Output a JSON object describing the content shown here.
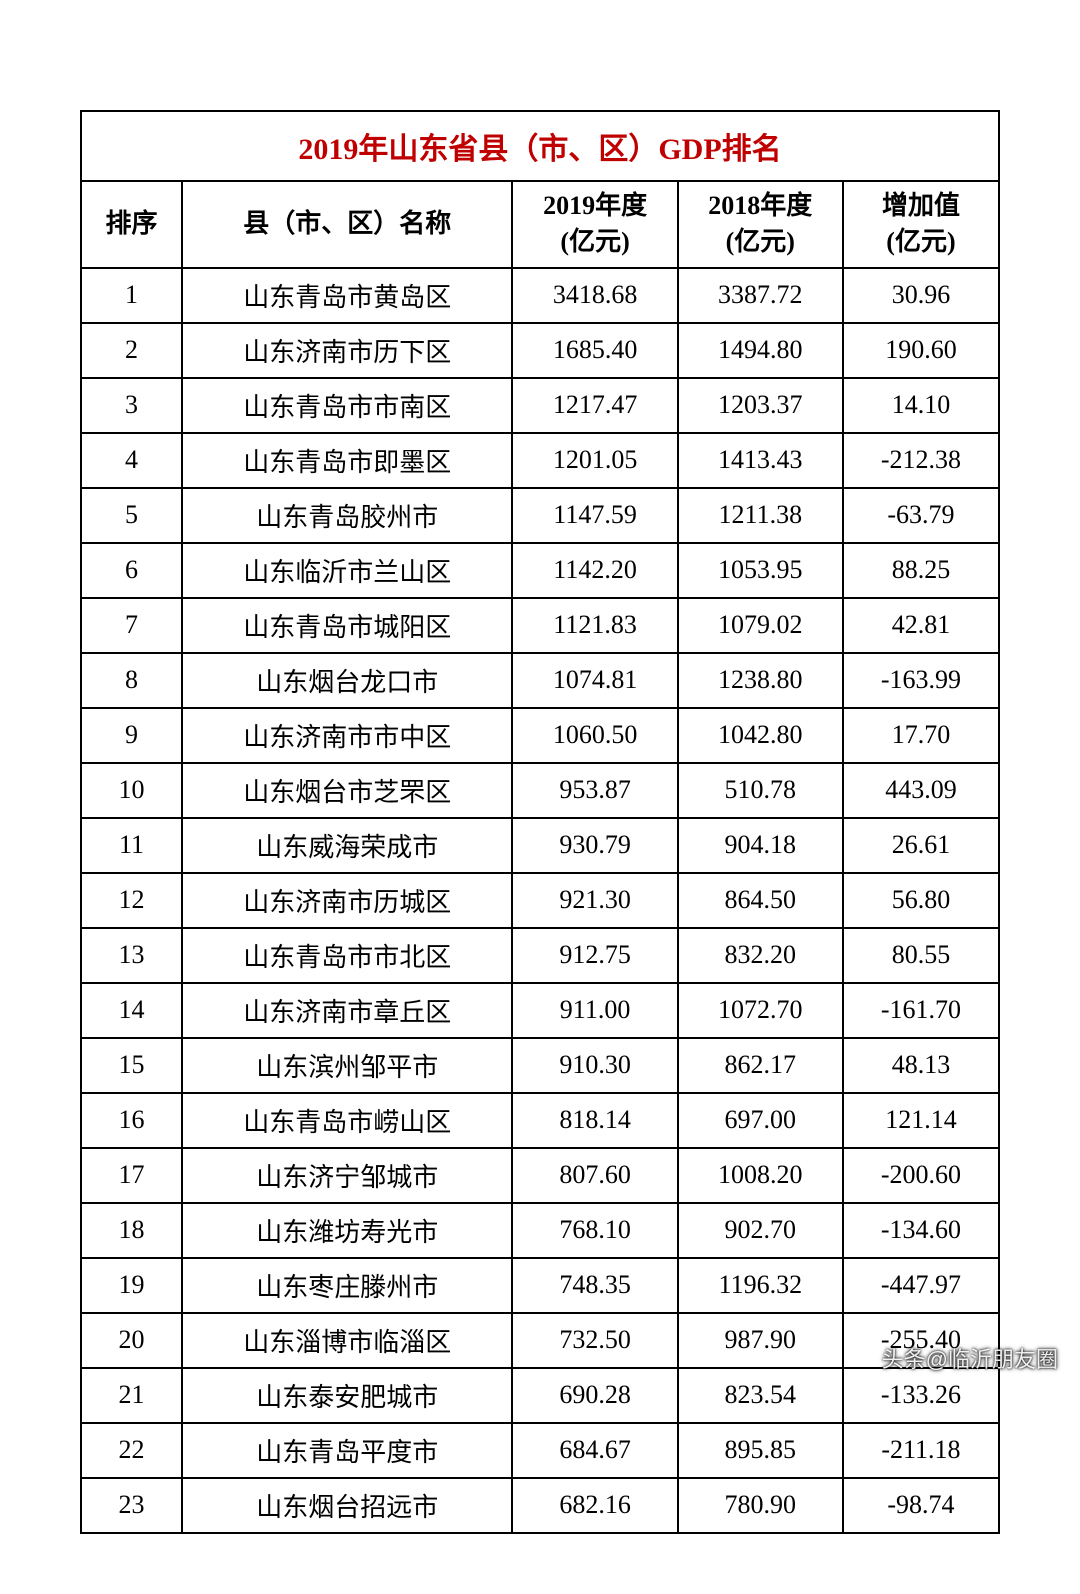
{
  "table": {
    "title": "2019年山东省县（市、区）GDP排名",
    "title_color": "#c00000",
    "border_color": "#000000",
    "background": "#ffffff",
    "font_size_title": 30,
    "font_size_header": 26,
    "font_size_cell": 26,
    "columns": [
      {
        "key": "rank",
        "label_line1": "排序",
        "label_line2": "",
        "width_pct": 11,
        "align": "center"
      },
      {
        "key": "name",
        "label_line1": "县（市、区）名称",
        "label_line2": "",
        "width_pct": 36,
        "align": "center"
      },
      {
        "key": "gdp_2019",
        "label_line1": "2019年度",
        "label_line2": "(亿元)",
        "width_pct": 18,
        "align": "center"
      },
      {
        "key": "gdp_2018",
        "label_line1": "2018年度",
        "label_line2": "(亿元)",
        "width_pct": 18,
        "align": "center"
      },
      {
        "key": "diff",
        "label_line1": "增加值",
        "label_line2": "(亿元)",
        "width_pct": 17,
        "align": "center"
      }
    ],
    "rows": [
      {
        "rank": "1",
        "name": "山东青岛市黄岛区",
        "gdp_2019": "3418.68",
        "gdp_2018": "3387.72",
        "diff": "30.96"
      },
      {
        "rank": "2",
        "name": "山东济南市历下区",
        "gdp_2019": "1685.40",
        "gdp_2018": "1494.80",
        "diff": "190.60"
      },
      {
        "rank": "3",
        "name": "山东青岛市市南区",
        "gdp_2019": "1217.47",
        "gdp_2018": "1203.37",
        "diff": "14.10"
      },
      {
        "rank": "4",
        "name": "山东青岛市即墨区",
        "gdp_2019": "1201.05",
        "gdp_2018": "1413.43",
        "diff": "-212.38"
      },
      {
        "rank": "5",
        "name": "山东青岛胶州市",
        "gdp_2019": "1147.59",
        "gdp_2018": "1211.38",
        "diff": "-63.79"
      },
      {
        "rank": "6",
        "name": "山东临沂市兰山区",
        "gdp_2019": "1142.20",
        "gdp_2018": "1053.95",
        "diff": "88.25"
      },
      {
        "rank": "7",
        "name": "山东青岛市城阳区",
        "gdp_2019": "1121.83",
        "gdp_2018": "1079.02",
        "diff": "42.81"
      },
      {
        "rank": "8",
        "name": "山东烟台龙口市",
        "gdp_2019": "1074.81",
        "gdp_2018": "1238.80",
        "diff": "-163.99"
      },
      {
        "rank": "9",
        "name": "山东济南市市中区",
        "gdp_2019": "1060.50",
        "gdp_2018": "1042.80",
        "diff": "17.70"
      },
      {
        "rank": "10",
        "name": "山东烟台市芝罘区",
        "gdp_2019": "953.87",
        "gdp_2018": "510.78",
        "diff": "443.09"
      },
      {
        "rank": "11",
        "name": "山东威海荣成市",
        "gdp_2019": "930.79",
        "gdp_2018": "904.18",
        "diff": "26.61"
      },
      {
        "rank": "12",
        "name": "山东济南市历城区",
        "gdp_2019": "921.30",
        "gdp_2018": "864.50",
        "diff": "56.80"
      },
      {
        "rank": "13",
        "name": "山东青岛市市北区",
        "gdp_2019": "912.75",
        "gdp_2018": "832.20",
        "diff": "80.55"
      },
      {
        "rank": "14",
        "name": "山东济南市章丘区",
        "gdp_2019": "911.00",
        "gdp_2018": "1072.70",
        "diff": "-161.70"
      },
      {
        "rank": "15",
        "name": "山东滨州邹平市",
        "gdp_2019": "910.30",
        "gdp_2018": "862.17",
        "diff": "48.13"
      },
      {
        "rank": "16",
        "name": "山东青岛市崂山区",
        "gdp_2019": "818.14",
        "gdp_2018": "697.00",
        "diff": "121.14"
      },
      {
        "rank": "17",
        "name": "山东济宁邹城市",
        "gdp_2019": "807.60",
        "gdp_2018": "1008.20",
        "diff": "-200.60"
      },
      {
        "rank": "18",
        "name": "山东潍坊寿光市",
        "gdp_2019": "768.10",
        "gdp_2018": "902.70",
        "diff": "-134.60"
      },
      {
        "rank": "19",
        "name": "山东枣庄滕州市",
        "gdp_2019": "748.35",
        "gdp_2018": "1196.32",
        "diff": "-447.97"
      },
      {
        "rank": "20",
        "name": "山东淄博市临淄区",
        "gdp_2019": "732.50",
        "gdp_2018": "987.90",
        "diff": "-255.40"
      },
      {
        "rank": "21",
        "name": "山东泰安肥城市",
        "gdp_2019": "690.28",
        "gdp_2018": "823.54",
        "diff": "-133.26"
      },
      {
        "rank": "22",
        "name": "山东青岛平度市",
        "gdp_2019": "684.67",
        "gdp_2018": "895.85",
        "diff": "-211.18"
      },
      {
        "rank": "23",
        "name": "山东烟台招远市",
        "gdp_2019": "682.16",
        "gdp_2018": "780.90",
        "diff": "-98.74"
      }
    ]
  },
  "watermark": "头条@临沂朋友圈"
}
